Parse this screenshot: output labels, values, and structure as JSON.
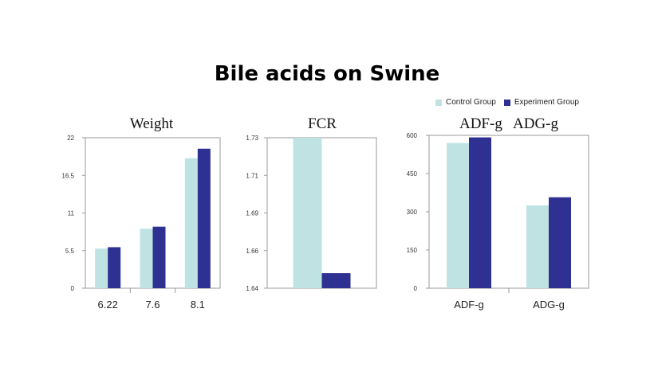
{
  "title": "Bile acids on Swine",
  "colors": {
    "control": "#bfe3e3",
    "experiment": "#2e3192"
  },
  "legend": [
    {
      "name": "Control Group",
      "color": "#bfe3e3"
    },
    {
      "name": "Experiment Group",
      "color": "#2e3192"
    }
  ],
  "chart_data": [
    {
      "type": "bar",
      "title": "Weight",
      "categories": [
        "6.22",
        "7.6",
        "8.1"
      ],
      "series": [
        {
          "name": "Control Group",
          "values": [
            5.8,
            8.7,
            19.0
          ]
        },
        {
          "name": "Experiment Group",
          "values": [
            6.0,
            9.0,
            20.4
          ]
        }
      ],
      "ylim": [
        0,
        22
      ],
      "yticks": [
        "0",
        "5.5",
        "11",
        "16.5",
        "22"
      ],
      "ytick_values": [
        0,
        5.5,
        11,
        16.5,
        22
      ],
      "grid": false
    },
    {
      "type": "bar",
      "title": "FCR",
      "categories": [
        ""
      ],
      "series": [
        {
          "name": "Control Group",
          "values": [
            1.73
          ]
        },
        {
          "name": "Experiment Group",
          "values": [
            1.649
          ]
        }
      ],
      "ylim": [
        1.64,
        1.73
      ],
      "yticks": [
        "1.64",
        "1.66",
        "1.69",
        "1.71",
        "1.73"
      ],
      "ytick_values": [
        1.64,
        1.6625,
        1.685,
        1.7075,
        1.73
      ],
      "grid": false
    },
    {
      "type": "bar",
      "title": "ADF-g   ADG-g",
      "categories": [
        "ADF-g",
        "ADG-g"
      ],
      "series": [
        {
          "name": "Control Group",
          "values": [
            570,
            325
          ]
        },
        {
          "name": "Experiment Group",
          "values": [
            592,
            357
          ]
        }
      ],
      "ylim": [
        0,
        600
      ],
      "yticks": [
        "0",
        "150",
        "300",
        "450",
        "600"
      ],
      "ytick_values": [
        0,
        150,
        300,
        450,
        600
      ],
      "grid": false
    }
  ]
}
